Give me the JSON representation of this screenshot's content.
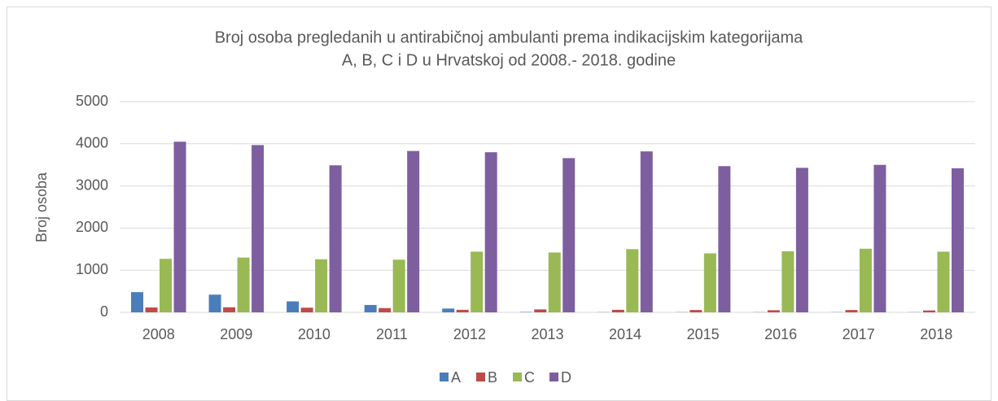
{
  "chart_data": {
    "type": "bar",
    "title": "Broj osoba pregledanih u antirabičnoj ambulanti prema indikacijskim kategorijama",
    "subtitle": "A, B, C i D u Hrvatskoj od 2008.- 2018. godine",
    "y_label": "Broj osoba",
    "categories": [
      "2008",
      "2009",
      "2010",
      "2011",
      "2012",
      "2013",
      "2014",
      "2015",
      "2016",
      "2017",
      "2018"
    ],
    "series": [
      {
        "name": "A",
        "color": "#4a7ebb",
        "values": [
          480,
          420,
          260,
          175,
          90,
          10,
          5,
          5,
          5,
          5,
          5
        ]
      },
      {
        "name": "B",
        "color": "#be4b48",
        "values": [
          115,
          120,
          110,
          100,
          60,
          70,
          60,
          55,
          50,
          55,
          45
        ]
      },
      {
        "name": "C",
        "color": "#98b954",
        "values": [
          1270,
          1300,
          1260,
          1250,
          1440,
          1420,
          1500,
          1400,
          1450,
          1510,
          1440
        ]
      },
      {
        "name": "D",
        "color": "#7d5fa0",
        "values": [
          4050,
          3970,
          3490,
          3830,
          3800,
          3660,
          3820,
          3470,
          3430,
          3500,
          3420
        ]
      }
    ],
    "ylim": [
      0,
      5000
    ],
    "yticks": [
      0,
      1000,
      2000,
      3000,
      4000,
      5000
    ],
    "grid": true,
    "legend": "bottom"
  }
}
